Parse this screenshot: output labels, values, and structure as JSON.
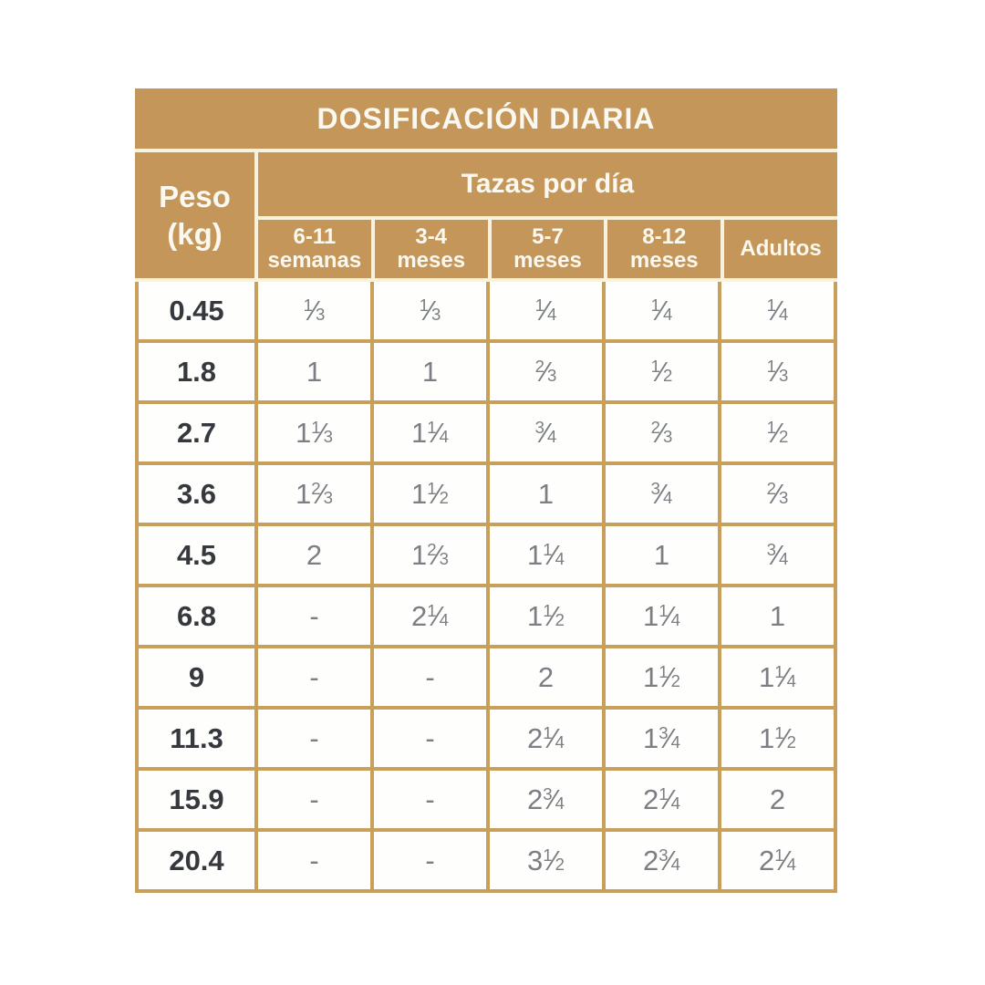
{
  "table": {
    "title": "DOSIFICACIÓN DIARIA",
    "peso_line1": "Peso",
    "peso_line2": "(kg)",
    "group_header": "Tazas por día",
    "column_headers": [
      [
        "6-11",
        "semanas"
      ],
      [
        "3-4",
        "meses"
      ],
      [
        "5-7",
        "meses"
      ],
      [
        "8-12",
        "meses"
      ],
      [
        "Adultos"
      ]
    ],
    "colors": {
      "tan_header": "#C49659",
      "tan_grid": "#C8A05C",
      "cream_divider": "#F8F2E0",
      "cell_background": "#FEFEFD",
      "header_text": "#FBF8EF",
      "weight_text": "#35383D",
      "value_text": "#7B7E82"
    }
  },
  "chart_data": {
    "type": "table",
    "title": "DOSIFICACIÓN DIARIA",
    "group_header": "Tazas por día",
    "columns": [
      "Peso (kg)",
      "6-11 semanas",
      "3-4 meses",
      "5-7 meses",
      "8-12 meses",
      "Adultos"
    ],
    "rows": [
      [
        "0.45",
        "1/3",
        "1/3",
        "1/4",
        "1/4",
        "1/4"
      ],
      [
        "1.8",
        "1",
        "1",
        "2/3",
        "1/2",
        "1/3"
      ],
      [
        "2.7",
        "1 1/3",
        "1 1/4",
        "3/4",
        "2/3",
        "1/2"
      ],
      [
        "3.6",
        "1 2/3",
        "1 1/2",
        "1",
        "3/4",
        "2/3"
      ],
      [
        "4.5",
        "2",
        "1 2/3",
        "1 1/4",
        "1",
        "3/4"
      ],
      [
        "6.8",
        "-",
        "2 1/4",
        "1 1/2",
        "1 1/4",
        "1"
      ],
      [
        "9",
        "-",
        "-",
        "2",
        "1 1/2",
        "1 1/4"
      ],
      [
        "11.3",
        "-",
        "-",
        "2 1/4",
        "1 3/4",
        "1 1/2"
      ],
      [
        "15.9",
        "-",
        "-",
        "2 3/4",
        "2 1/4",
        "2"
      ],
      [
        "20.4",
        "-",
        "-",
        "3 1/2",
        "2 3/4",
        "2 1/4"
      ]
    ]
  }
}
